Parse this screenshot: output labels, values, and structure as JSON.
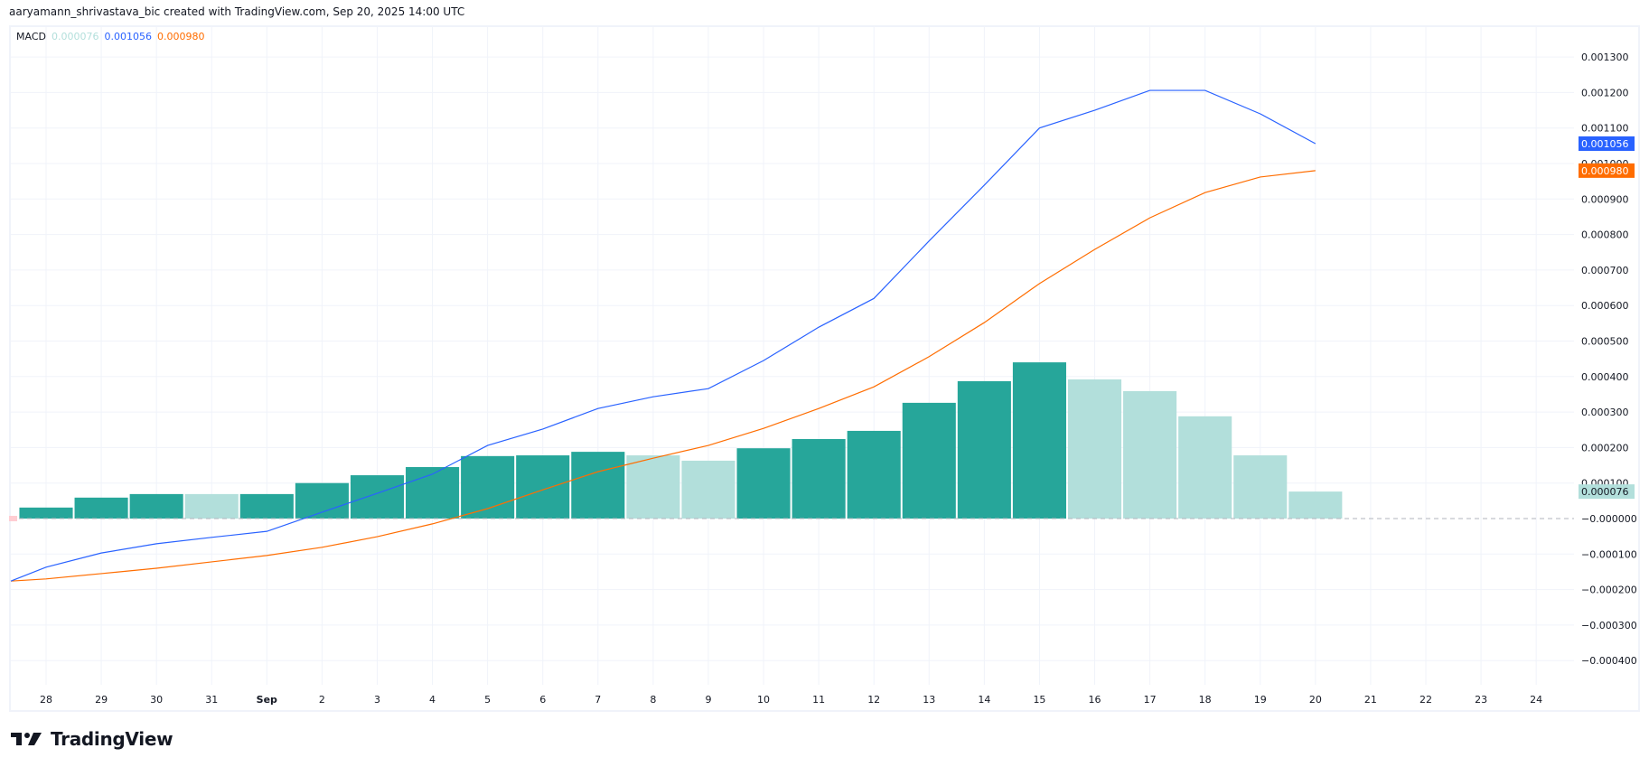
{
  "attribution": "aaryamann_shrivastava_bic created with TradingView.com, Sep 20, 2025 14:00 UTC",
  "legend": {
    "name": "MACD",
    "histogram_value": "0.000076",
    "macd_value": "0.001056",
    "signal_value": "0.000980"
  },
  "colors": {
    "histogram_strong": "#26a69a",
    "histogram_weak": "#b2dfdb",
    "macd_line": "#2962ff",
    "signal_line": "#ff6d00",
    "grid": "#f0f3fa",
    "zero_line": "#b2b5be"
  },
  "price_labels": {
    "macd": "0.001056",
    "signal": "0.000980",
    "histogram": "0.000076"
  },
  "logo": {
    "text": "TradingView"
  },
  "chart_data": {
    "type": "bar",
    "title": "MACD",
    "x": [
      "28",
      "29",
      "30",
      "31",
      "Sep",
      "2",
      "3",
      "4",
      "5",
      "6",
      "7",
      "8",
      "9",
      "10",
      "11",
      "12",
      "13",
      "14",
      "15",
      "16",
      "17",
      "18",
      "19",
      "20"
    ],
    "x_axis_ticks": [
      "28",
      "29",
      "30",
      "31",
      "Sep",
      "2",
      "3",
      "4",
      "5",
      "6",
      "7",
      "8",
      "9",
      "10",
      "11",
      "12",
      "13",
      "14",
      "15",
      "16",
      "17",
      "18",
      "19",
      "20",
      "21",
      "22",
      "23",
      "24"
    ],
    "y_axis_ticks": [
      "0.001300",
      "0.001200",
      "0.001100",
      "0.001000",
      "0.000900",
      "0.000800",
      "0.000700",
      "0.000600",
      "0.000500",
      "0.000400",
      "0.000300",
      "0.000200",
      "0.000100",
      "-0.000000",
      "-0.000100",
      "-0.000200",
      "-0.000300",
      "-0.000400"
    ],
    "ylim": [
      -0.00045,
      0.00136
    ],
    "grid": true,
    "series": [
      {
        "name": "Histogram",
        "type": "bar",
        "values": [
          3.1e-05,
          5.9e-05,
          6.9e-05,
          6.9e-05,
          6.9e-05,
          0.0001,
          0.000122,
          0.000145,
          0.000176,
          0.000178,
          0.000188,
          0.000178,
          0.000163,
          0.000198,
          0.000224,
          0.000247,
          0.000326,
          0.000387,
          0.00044,
          0.000392,
          0.000359,
          0.000288,
          0.000178,
          7.6e-05
        ],
        "shade": [
          "strong",
          "strong",
          "strong",
          "weak",
          "strong",
          "strong",
          "strong",
          "strong",
          "strong",
          "strong",
          "strong",
          "weak",
          "weak",
          "strong",
          "strong",
          "strong",
          "strong",
          "strong",
          "strong",
          "weak",
          "weak",
          "weak",
          "weak",
          "weak"
        ]
      },
      {
        "name": "MACD",
        "type": "line",
        "values": [
          -0.000137,
          -9.7e-05,
          -7.1e-05,
          -5.3e-05,
          -3.6e-05,
          1.8e-05,
          7.1e-05,
          0.000125,
          0.000206,
          0.000252,
          0.00031,
          0.000343,
          0.000366,
          0.000445,
          0.000539,
          0.00062,
          0.000782,
          0.000939,
          0.0011,
          0.00115,
          0.001206,
          0.001206,
          0.00114,
          0.001056
        ],
        "start_value": -0.000176
      },
      {
        "name": "Signal",
        "type": "line",
        "values": [
          -0.00017,
          -0.000155,
          -0.00014,
          -0.000122,
          -0.000104,
          -8.1e-05,
          -5.1e-05,
          -1.5e-05,
          2.8e-05,
          8.1e-05,
          0.000132,
          0.00017,
          0.000206,
          0.000254,
          0.00031,
          0.000371,
          0.000456,
          0.000552,
          0.000662,
          0.000758,
          0.000847,
          0.000918,
          0.000962,
          0.00098
        ],
        "start_value": -0.000176
      }
    ]
  }
}
